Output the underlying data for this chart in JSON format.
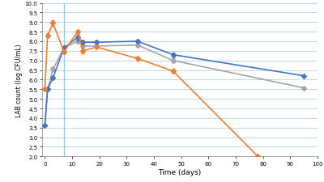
{
  "blue_x": [
    0,
    1,
    3,
    7,
    12,
    14,
    19,
    34,
    47,
    95
  ],
  "blue_y": [
    3.6,
    5.5,
    6.1,
    7.65,
    8.2,
    7.95,
    7.95,
    8.0,
    7.3,
    6.2
  ],
  "blue_err": [
    0.0,
    0.0,
    0.1,
    0.1,
    0.15,
    0.1,
    0.1,
    0.1,
    0.1,
    0.0
  ],
  "gray_x": [
    0,
    1,
    3,
    7,
    12,
    14,
    19,
    34,
    47,
    95
  ],
  "gray_y": [
    3.6,
    5.5,
    6.55,
    7.65,
    8.0,
    7.75,
    7.75,
    7.8,
    7.0,
    5.57
  ],
  "gray_err": [
    0.0,
    0.0,
    0.1,
    0.1,
    0.1,
    0.1,
    0.05,
    0.1,
    0.1,
    0.0
  ],
  "orange_x": [
    0,
    1,
    3,
    7,
    12,
    14,
    19,
    34,
    47,
    78
  ],
  "orange_y": [
    5.5,
    8.3,
    8.95,
    7.45,
    8.5,
    7.5,
    7.7,
    7.1,
    6.45,
    2.02
  ],
  "orange_err": [
    0.0,
    0.1,
    0.15,
    0.1,
    0.1,
    0.15,
    0.0,
    0.1,
    0.1,
    0.0
  ],
  "blue_color": "#4472C4",
  "gray_color": "#A5A5A5",
  "orange_color": "#ED7D31",
  "vline_x": 7,
  "vline_color": "#92CDDC",
  "hline_y": 2.0,
  "hline_color": "#333333",
  "xlim": [
    -1,
    100
  ],
  "ylim": [
    2.0,
    10.0
  ],
  "xticks": [
    0,
    10,
    20,
    30,
    40,
    50,
    60,
    70,
    80,
    90,
    100
  ],
  "yticks": [
    2.0,
    2.5,
    3.0,
    3.5,
    4.0,
    4.5,
    5.0,
    5.5,
    6.0,
    6.5,
    7.0,
    7.5,
    8.0,
    8.5,
    9.0,
    9.5,
    10.0
  ],
  "xlabel": "Time (days)",
  "ylabel": "LAB count (log CFU/mL)",
  "background_color": "#FFFFFF",
  "grid_color": "#BDD7EE",
  "marker": "D",
  "markersize": 3,
  "linewidth": 1.2
}
